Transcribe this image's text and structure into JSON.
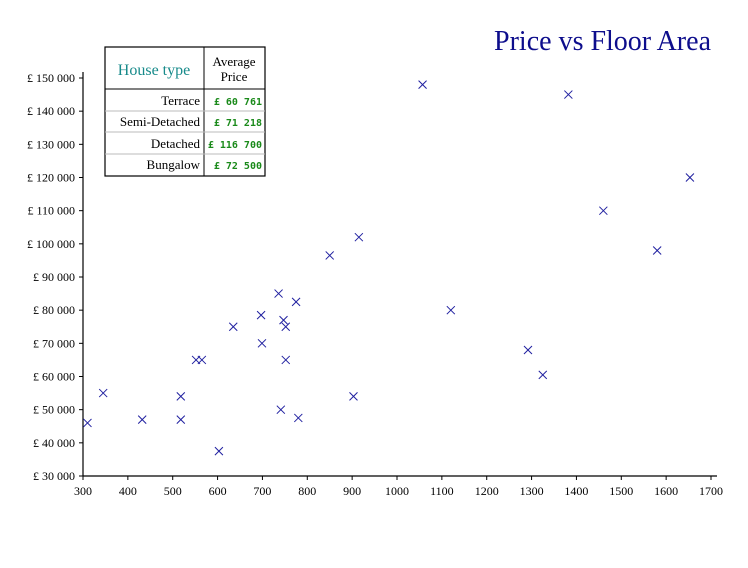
{
  "chart_data": {
    "type": "scatter",
    "title": "Price vs Floor Area",
    "xlabel": "",
    "ylabel": "",
    "xlim": [
      300,
      1700
    ],
    "ylim": [
      30000,
      150000
    ],
    "x_ticks": [
      "300",
      "400",
      "500",
      "600",
      "700",
      "800",
      "900",
      "1000",
      "1100",
      "1200",
      "1300",
      "1400",
      "1500",
      "1600",
      "1700"
    ],
    "y_ticks": [
      "£ 30 000",
      "£ 40 000",
      "£ 50 000",
      "£ 60 000",
      "£ 70 000",
      "£ 80 000",
      "£ 90 000",
      "£ 100 000",
      "£ 110 000",
      "£ 120 000",
      "£ 130 000",
      "£ 140 000",
      "£ 150 000"
    ],
    "marker": "x",
    "marker_color": "#2020a0",
    "title_color": "#0d0d8c",
    "grid": false,
    "points": [
      {
        "x": 310,
        "y": 46000
      },
      {
        "x": 345,
        "y": 55000
      },
      {
        "x": 432,
        "y": 47000
      },
      {
        "x": 518,
        "y": 54000
      },
      {
        "x": 518,
        "y": 47000
      },
      {
        "x": 552,
        "y": 65000
      },
      {
        "x": 565,
        "y": 65000
      },
      {
        "x": 603,
        "y": 37500
      },
      {
        "x": 635,
        "y": 75000
      },
      {
        "x": 697,
        "y": 78500
      },
      {
        "x": 699,
        "y": 70000
      },
      {
        "x": 736,
        "y": 85000
      },
      {
        "x": 741,
        "y": 50000
      },
      {
        "x": 747,
        "y": 77000
      },
      {
        "x": 752,
        "y": 75000
      },
      {
        "x": 752,
        "y": 65000
      },
      {
        "x": 775,
        "y": 82500
      },
      {
        "x": 780,
        "y": 47500
      },
      {
        "x": 850,
        "y": 96500
      },
      {
        "x": 903,
        "y": 54000
      },
      {
        "x": 915,
        "y": 102000
      },
      {
        "x": 1057,
        "y": 148000
      },
      {
        "x": 1120,
        "y": 80000
      },
      {
        "x": 1292,
        "y": 68000
      },
      {
        "x": 1325,
        "y": 60500
      },
      {
        "x": 1382,
        "y": 145000
      },
      {
        "x": 1460,
        "y": 110000
      },
      {
        "x": 1580,
        "y": 98000
      },
      {
        "x": 1653,
        "y": 120000
      }
    ]
  },
  "legend": {
    "header_type": "House type",
    "header_price_line1": "Average",
    "header_price_line2": "Price",
    "header_type_color": "#178a8a",
    "price_color": "#1a8a1a",
    "rows": [
      {
        "type": "Terrace",
        "price": "£ 60 761"
      },
      {
        "type": "Semi-Detached",
        "price": "£ 71 218"
      },
      {
        "type": "Detached",
        "price": "£ 116 700"
      },
      {
        "type": "Bungalow",
        "price": "£ 72 500"
      }
    ]
  }
}
